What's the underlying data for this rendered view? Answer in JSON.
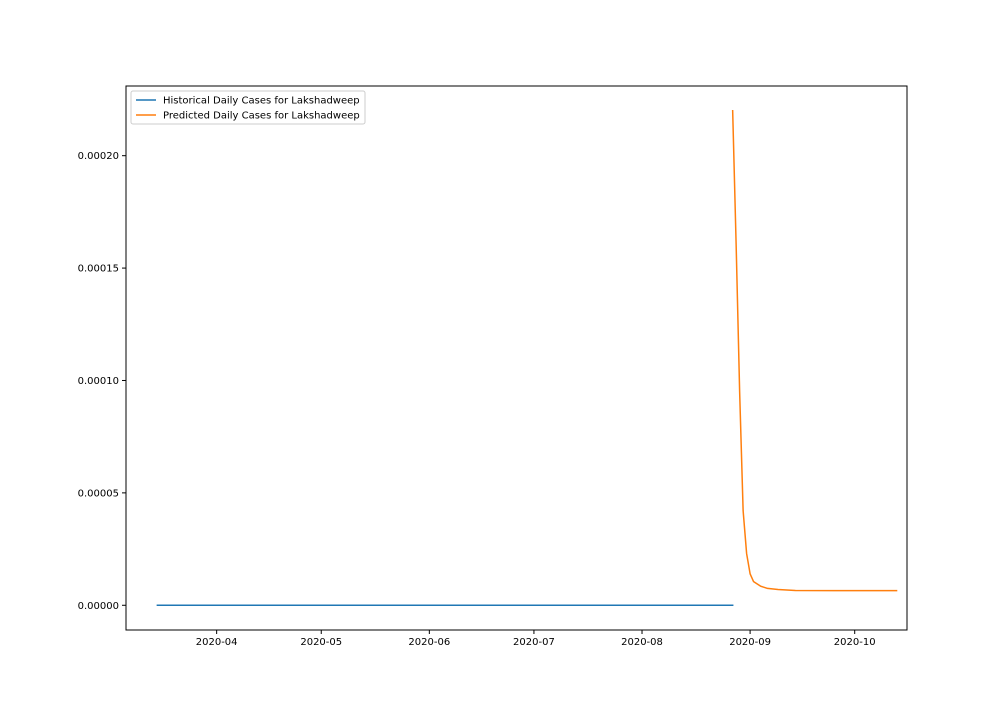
{
  "chart_data": {
    "type": "line",
    "title": "",
    "xlabel": "",
    "ylabel": "",
    "xlim": [
      "2020-03-06",
      "2020-10-16"
    ],
    "ylim": [
      -1.1e-05,
      0.000231
    ],
    "x_ticks": [
      {
        "date": "2020-04-01",
        "label": "2020-04"
      },
      {
        "date": "2020-05-01",
        "label": "2020-05"
      },
      {
        "date": "2020-06-01",
        "label": "2020-06"
      },
      {
        "date": "2020-07-01",
        "label": "2020-07"
      },
      {
        "date": "2020-08-01",
        "label": "2020-08"
      },
      {
        "date": "2020-09-01",
        "label": "2020-09"
      },
      {
        "date": "2020-10-01",
        "label": "2020-10"
      }
    ],
    "y_ticks": [
      {
        "value": 0.0,
        "label": "0.00000"
      },
      {
        "value": 5e-05,
        "label": "0.00005"
      },
      {
        "value": 0.0001,
        "label": "0.00010"
      },
      {
        "value": 0.00015,
        "label": "0.00015"
      },
      {
        "value": 0.0002,
        "label": "0.00020"
      }
    ],
    "grid": false,
    "legend_position": "top-left",
    "series": [
      {
        "name": "Historical Daily Cases for Lakshadweep",
        "color": "#1f77b4",
        "points": [
          {
            "x": "2020-03-15",
            "y": 0.0
          },
          {
            "x": "2020-08-27",
            "y": 0.0
          }
        ]
      },
      {
        "name": "Predicted Daily Cases for Lakshadweep",
        "color": "#ff7f0e",
        "points": [
          {
            "x": "2020-08-27",
            "y": 0.00022
          },
          {
            "x": "2020-08-28",
            "y": 0.00016
          },
          {
            "x": "2020-08-29",
            "y": 9.5e-05
          },
          {
            "x": "2020-08-30",
            "y": 4.2e-05
          },
          {
            "x": "2020-08-31",
            "y": 2.3e-05
          },
          {
            "x": "2020-09-01",
            "y": 1.4e-05
          },
          {
            "x": "2020-09-02",
            "y": 1.05e-05
          },
          {
            "x": "2020-09-04",
            "y": 8.5e-06
          },
          {
            "x": "2020-09-06",
            "y": 7.5e-06
          },
          {
            "x": "2020-09-09",
            "y": 7e-06
          },
          {
            "x": "2020-09-14",
            "y": 6.6e-06
          },
          {
            "x": "2020-09-25",
            "y": 6.5e-06
          },
          {
            "x": "2020-10-13",
            "y": 6.5e-06
          }
        ]
      }
    ]
  }
}
